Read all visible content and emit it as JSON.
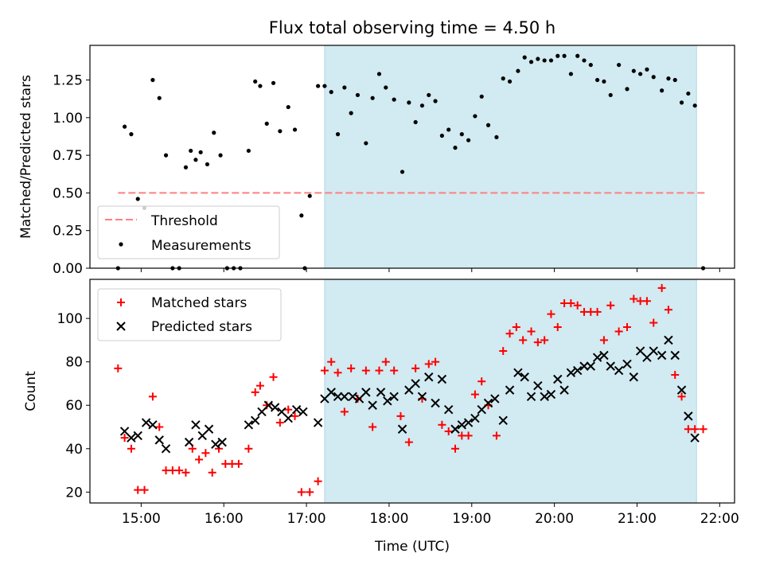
{
  "figure_title": "Flux total observing time = 4.50 h",
  "x_tick_labels": [
    "15:00",
    "16:00",
    "17:00",
    "18:00",
    "19:00",
    "20:00",
    "21:00",
    "22:00"
  ],
  "chart_data": [
    {
      "type": "scatter",
      "title": "Flux total observing time = 4.50 h",
      "xlabel": "",
      "ylabel": "Matched/Predicted stars",
      "xlim": [
        14.38,
        22.18
      ],
      "ylim": [
        0.0,
        1.48
      ],
      "y_ticks": [
        "0.00",
        "0.25",
        "0.50",
        "0.75",
        "1.00",
        "1.25"
      ],
      "y_tick_values": [
        0,
        0.25,
        0.5,
        0.75,
        1.0,
        1.25
      ],
      "observing_window": [
        17.22,
        21.72
      ],
      "shade_color": "#add8e6",
      "legend": {
        "position": "lower left",
        "entries": [
          "Threshold",
          "Measurements"
        ]
      },
      "threshold": {
        "name": "Threshold",
        "value": 0.5,
        "x_range": [
          14.72,
          21.82
        ],
        "color": "#ff7f7f",
        "style": "dashed"
      },
      "measurements": {
        "name": "Measurements",
        "color": "#000000",
        "x": [
          14.72,
          14.8,
          14.88,
          14.96,
          15.04,
          15.14,
          15.22,
          15.3,
          15.38,
          15.46,
          15.54,
          15.6,
          15.66,
          15.72,
          15.8,
          15.88,
          15.96,
          16.04,
          16.12,
          16.2,
          16.3,
          16.38,
          16.44,
          16.52,
          16.6,
          16.68,
          16.78,
          16.86,
          16.94,
          16.98,
          17.04,
          17.14,
          17.22,
          17.3,
          17.38,
          17.46,
          17.54,
          17.62,
          17.72,
          17.8,
          17.88,
          17.96,
          18.06,
          18.16,
          18.24,
          18.32,
          18.4,
          18.48,
          18.56,
          18.64,
          18.72,
          18.8,
          18.88,
          18.96,
          19.04,
          19.12,
          19.2,
          19.3,
          19.38,
          19.46,
          19.56,
          19.64,
          19.72,
          19.8,
          19.88,
          19.96,
          20.04,
          20.12,
          20.2,
          20.28,
          20.36,
          20.44,
          20.52,
          20.6,
          20.68,
          20.78,
          20.88,
          20.96,
          21.04,
          21.12,
          21.2,
          21.3,
          21.38,
          21.46,
          21.54,
          21.62,
          21.7,
          21.8
        ],
        "y": [
          0.0,
          0.94,
          0.89,
          0.46,
          0.4,
          1.25,
          1.13,
          0.75,
          0.0,
          0.0,
          0.67,
          0.78,
          0.72,
          0.77,
          0.69,
          0.9,
          0.75,
          0.0,
          0.0,
          0.0,
          0.78,
          1.24,
          1.21,
          0.96,
          1.23,
          0.91,
          1.07,
          0.92,
          0.35,
          0.0,
          0.48,
          1.21,
          1.21,
          1.17,
          0.89,
          1.2,
          1.03,
          1.15,
          0.83,
          1.13,
          1.29,
          1.2,
          1.12,
          0.64,
          1.1,
          0.97,
          1.08,
          1.15,
          1.11,
          0.88,
          0.92,
          0.8,
          0.89,
          0.85,
          1.01,
          1.14,
          0.95,
          0.87,
          1.26,
          1.24,
          1.31,
          1.4,
          1.37,
          1.39,
          1.38,
          1.38,
          1.41,
          1.41,
          1.29,
          1.41,
          1.38,
          1.35,
          1.25,
          1.24,
          1.15,
          1.35,
          1.19,
          1.31,
          1.29,
          1.32,
          1.27,
          1.18,
          1.26,
          1.25,
          1.1,
          1.16,
          1.08,
          0.0
        ]
      }
    },
    {
      "type": "scatter",
      "title": "",
      "xlabel": "Time (UTC)",
      "ylabel": "Count",
      "xlim": [
        14.38,
        22.18
      ],
      "ylim": [
        15,
        118
      ],
      "y_ticks": [
        "20",
        "40",
        "60",
        "80",
        "100"
      ],
      "y_tick_values": [
        20,
        40,
        60,
        80,
        100
      ],
      "observing_window": [
        17.22,
        21.72
      ],
      "shade_color": "#add8e6",
      "legend": {
        "position": "upper left",
        "entries": [
          "Matched stars",
          "Predicted stars"
        ]
      },
      "series": [
        {
          "name": "Matched stars",
          "marker": "+",
          "color": "#ff0000",
          "x": [
            14.72,
            14.8,
            14.88,
            14.96,
            15.04,
            15.14,
            15.22,
            15.3,
            15.38,
            15.46,
            15.54,
            15.62,
            15.7,
            15.78,
            15.86,
            15.94,
            16.02,
            16.1,
            16.18,
            16.3,
            16.38,
            16.44,
            16.52,
            16.6,
            16.68,
            16.78,
            16.86,
            16.94,
            17.04,
            17.14,
            17.22,
            17.3,
            17.38,
            17.46,
            17.54,
            17.62,
            17.72,
            17.8,
            17.88,
            17.96,
            18.06,
            18.14,
            18.24,
            18.32,
            18.4,
            18.48,
            18.56,
            18.64,
            18.72,
            18.8,
            18.88,
            18.96,
            19.04,
            19.12,
            19.2,
            19.3,
            19.38,
            19.46,
            19.54,
            19.62,
            19.72,
            19.8,
            19.88,
            19.96,
            20.04,
            20.12,
            20.2,
            20.28,
            20.36,
            20.44,
            20.52,
            20.6,
            20.68,
            20.78,
            20.88,
            20.96,
            21.04,
            21.12,
            21.2,
            21.3,
            21.38,
            21.46,
            21.54,
            21.62,
            21.7,
            21.8
          ],
          "y": [
            77,
            45,
            40,
            21,
            21,
            64,
            50,
            30,
            30,
            30,
            29,
            40,
            35,
            38,
            29,
            40,
            33,
            33,
            33,
            40,
            66,
            69,
            60,
            73,
            52,
            58,
            55,
            20,
            20,
            25,
            76,
            80,
            75,
            57,
            77,
            63,
            76,
            50,
            76,
            80,
            76,
            55,
            43,
            77,
            63,
            79,
            80,
            51,
            48,
            40,
            46,
            46,
            65,
            71,
            60,
            46,
            85,
            93,
            96,
            90,
            94,
            89,
            90,
            102,
            96,
            107,
            107,
            106,
            103,
            103,
            103,
            90,
            106,
            94,
            96,
            109,
            108,
            108,
            98,
            114,
            104,
            74,
            64,
            49,
            49,
            49
          ]
        },
        {
          "name": "Predicted stars",
          "marker": "x",
          "color": "#000000",
          "x": [
            14.8,
            14.88,
            14.96,
            15.06,
            15.14,
            15.22,
            15.3,
            15.58,
            15.66,
            15.74,
            15.82,
            15.9,
            15.98,
            16.3,
            16.38,
            16.46,
            16.54,
            16.62,
            16.7,
            16.78,
            16.88,
            16.96,
            17.14,
            17.22,
            17.3,
            17.38,
            17.46,
            17.56,
            17.64,
            17.72,
            17.8,
            17.9,
            17.98,
            18.06,
            18.16,
            18.24,
            18.32,
            18.4,
            18.48,
            18.56,
            18.64,
            18.72,
            18.8,
            18.88,
            18.96,
            19.04,
            19.12,
            19.2,
            19.28,
            19.38,
            19.46,
            19.56,
            19.64,
            19.72,
            19.8,
            19.88,
            19.96,
            20.04,
            20.12,
            20.2,
            20.28,
            20.36,
            20.44,
            20.52,
            20.6,
            20.68,
            20.78,
            20.88,
            20.96,
            21.04,
            21.12,
            21.2,
            21.3,
            21.38,
            21.46,
            21.54,
            21.62,
            21.7
          ],
          "y": [
            48,
            45,
            46,
            52,
            51,
            44,
            40,
            43,
            51,
            46,
            49,
            42,
            43,
            51,
            53,
            57,
            60,
            59,
            57,
            54,
            58,
            57,
            52,
            63,
            66,
            64,
            64,
            64,
            63,
            66,
            60,
            66,
            62,
            64,
            49,
            67,
            70,
            64,
            73,
            61,
            72,
            58,
            49,
            51,
            52,
            54,
            58,
            61,
            63,
            53,
            67,
            75,
            73,
            64,
            69,
            64,
            65,
            72,
            67,
            75,
            76,
            78,
            78,
            82,
            83,
            78,
            76,
            79,
            73,
            85,
            82,
            85,
            83,
            90,
            83,
            67,
            55,
            45
          ]
        }
      ]
    }
  ]
}
